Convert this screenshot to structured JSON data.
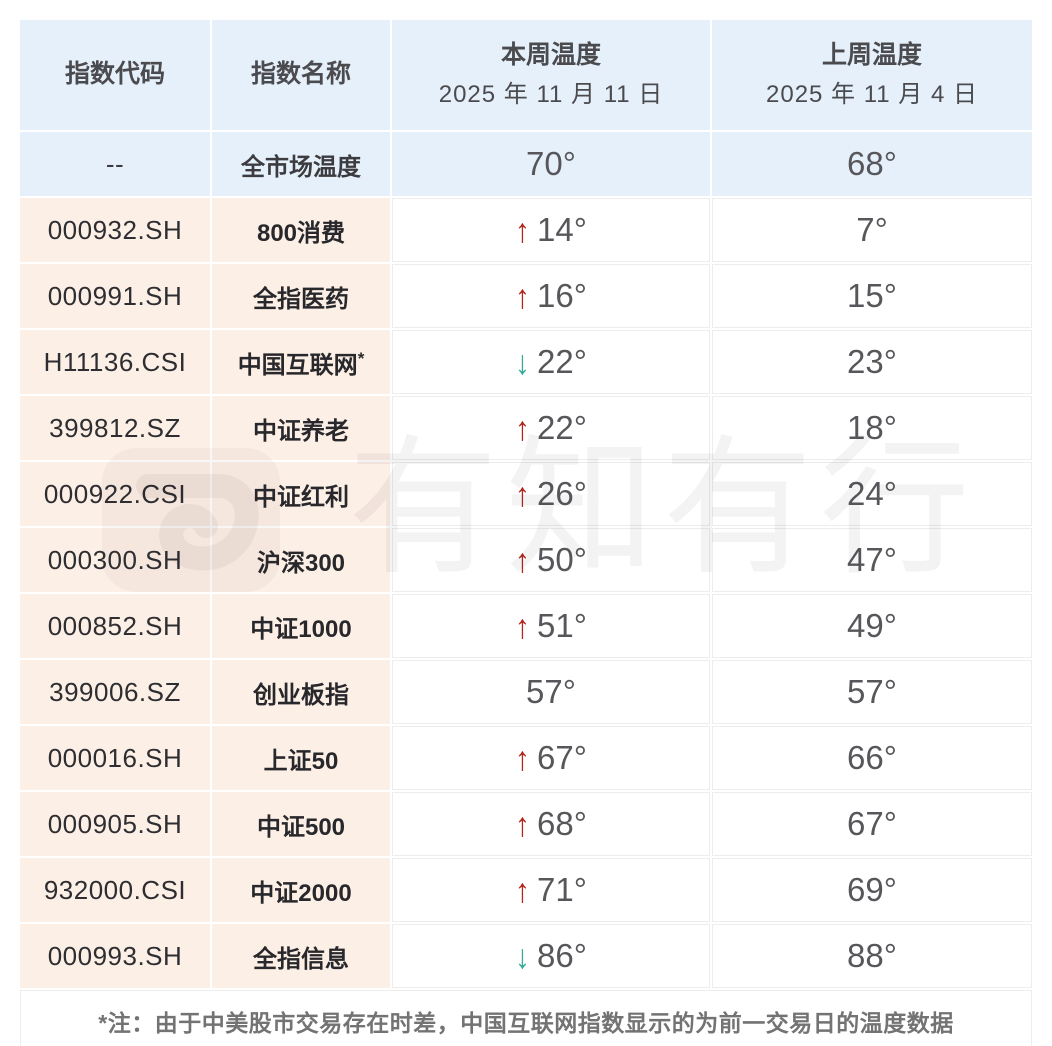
{
  "chart_data": {
    "type": "table",
    "columns": [
      "指数代码",
      "指数名称",
      "本周温度 2025 年 11 月 11 日",
      "上周温度 2025 年 11 月 4 日"
    ],
    "rows": [
      {
        "code": "--",
        "name": "全市场温度",
        "this_week": 70,
        "last_week": 68,
        "direction": ""
      },
      {
        "code": "000932.SH",
        "name": "800消费",
        "this_week": 14,
        "last_week": 7,
        "direction": "up"
      },
      {
        "code": "000991.SH",
        "name": "全指医药",
        "this_week": 16,
        "last_week": 15,
        "direction": "up"
      },
      {
        "code": "H11136.CSI",
        "name": "中国互联网",
        "this_week": 22,
        "last_week": 23,
        "direction": "down"
      },
      {
        "code": "399812.SZ",
        "name": "中证养老",
        "this_week": 22,
        "last_week": 18,
        "direction": "up"
      },
      {
        "code": "000922.CSI",
        "name": "中证红利",
        "this_week": 26,
        "last_week": 24,
        "direction": "up"
      },
      {
        "code": "000300.SH",
        "name": "沪深300",
        "this_week": 50,
        "last_week": 47,
        "direction": "up"
      },
      {
        "code": "000852.SH",
        "name": "中证1000",
        "this_week": 51,
        "last_week": 49,
        "direction": "up"
      },
      {
        "code": "399006.SZ",
        "name": "创业板指",
        "this_week": 57,
        "last_week": 57,
        "direction": ""
      },
      {
        "code": "000016.SH",
        "name": "上证50",
        "this_week": 67,
        "last_week": 66,
        "direction": "up"
      },
      {
        "code": "000905.SH",
        "name": "中证500",
        "this_week": 68,
        "last_week": 67,
        "direction": "up"
      },
      {
        "code": "932000.CSI",
        "name": "中证2000",
        "this_week": 71,
        "last_week": 69,
        "direction": "up"
      },
      {
        "code": "000993.SH",
        "name": "全指信息",
        "this_week": 86,
        "last_week": 88,
        "direction": "down"
      }
    ]
  },
  "table": {
    "headers": {
      "code": "指数代码",
      "name": "指数名称",
      "this_week_title": "本周温度",
      "this_week_date": "2025 年 11 月 11 日",
      "last_week_title": "上周温度",
      "last_week_date": "2025 年 11 月 4 日"
    },
    "rows": [
      {
        "code": "--",
        "name": "全市场温度",
        "note": "",
        "direction": "",
        "this_week": "70°",
        "last_week": "68°"
      },
      {
        "code": "000932.SH",
        "name": "800消费",
        "note": "",
        "direction": "up",
        "this_week": "14°",
        "last_week": "7°"
      },
      {
        "code": "000991.SH",
        "name": "全指医药",
        "note": "",
        "direction": "up",
        "this_week": "16°",
        "last_week": "15°"
      },
      {
        "code": "H11136.CSI",
        "name": "中国互联网",
        "note": "*",
        "direction": "down",
        "this_week": "22°",
        "last_week": "23°"
      },
      {
        "code": "399812.SZ",
        "name": "中证养老",
        "note": "",
        "direction": "up",
        "this_week": "22°",
        "last_week": "18°"
      },
      {
        "code": "000922.CSI",
        "name": "中证红利",
        "note": "",
        "direction": "up",
        "this_week": "26°",
        "last_week": "24°"
      },
      {
        "code": "000300.SH",
        "name": "沪深300",
        "note": "",
        "direction": "up",
        "this_week": "50°",
        "last_week": "47°"
      },
      {
        "code": "000852.SH",
        "name": "中证1000",
        "note": "",
        "direction": "up",
        "this_week": "51°",
        "last_week": "49°"
      },
      {
        "code": "399006.SZ",
        "name": "创业板指",
        "note": "",
        "direction": "",
        "this_week": "57°",
        "last_week": "57°"
      },
      {
        "code": "000016.SH",
        "name": "上证50",
        "note": "",
        "direction": "up",
        "this_week": "67°",
        "last_week": "66°"
      },
      {
        "code": "000905.SH",
        "name": "中证500",
        "note": "",
        "direction": "up",
        "this_week": "68°",
        "last_week": "67°"
      },
      {
        "code": "932000.CSI",
        "name": "中证2000",
        "note": "",
        "direction": "up",
        "this_week": "71°",
        "last_week": "69°"
      },
      {
        "code": "000993.SH",
        "name": "全指信息",
        "note": "",
        "direction": "down",
        "this_week": "86°",
        "last_week": "88°"
      }
    ],
    "footnote": "*注：由于中美股市交易存在时差，中国互联网指数显示的为前一交易日的温度数据"
  },
  "watermark": {
    "logo": "youzhiyouxing-logo",
    "characters": [
      "有",
      "知",
      "有",
      "行"
    ]
  },
  "colors": {
    "header_bg": "#e5f0fa",
    "label_bg": "#fcefe6",
    "up_arrow": "#b2251c",
    "down_arrow": "#33ab96",
    "value_text": "#57575b",
    "cell_border": "#ededed"
  },
  "icons": {
    "up": "up-arrow-icon",
    "down": "down-arrow-icon"
  }
}
